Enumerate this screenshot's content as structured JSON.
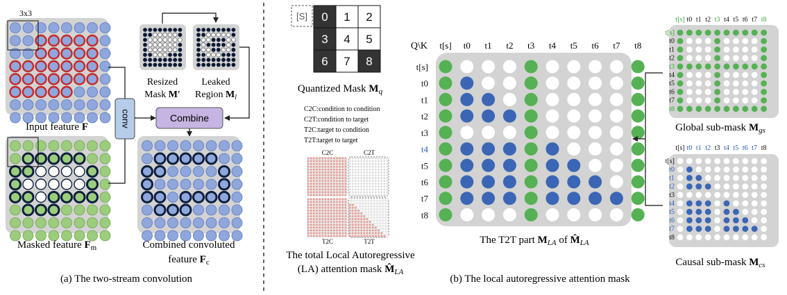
{
  "colors": {
    "panel": "#d3d3d3",
    "blue_dot": "#8fa7dc",
    "blue_dot_stroke": "#5a79bb",
    "red_ring": "#c62828",
    "green_dot": "#9ccd7c",
    "dark_ring": "#0d1f3c",
    "mask_dot": "#0d1a33",
    "conv_box": "#b5cde9",
    "combine_box": "#c6b4e2",
    "mla_green": "#55b153",
    "mla_blue": "#3b66b5",
    "mla_white": "#ffffff",
    "mla_panel": "#d3d3d3",
    "label_blue": "#2f5cb0",
    "label_green": "#3fa543",
    "t2c_pink": "#e89a92"
  },
  "left": {
    "kernel_label": "3x3",
    "input_caption_text": "Input feature ",
    "input_caption_sym": "F",
    "masked_caption_text": "Masked feature ",
    "masked_caption_sym": "F",
    "masked_caption_sub": "m",
    "conv_label": "conv",
    "combine_label": "Combine",
    "resized_line1": "Resized",
    "resized_line2": "Mask ",
    "resized_sym": "M′",
    "leaked_line1": "Leaked",
    "leaked_line2": "Region ",
    "leaked_sym": "M",
    "leaked_sub": "l",
    "combined_line1": "Combined convoluted",
    "combined_line2": "feature ",
    "combined_sym": "F",
    "combined_sub": "c",
    "caption": "(a) The two-stream convolution"
  },
  "mid": {
    "start_token": "[S]",
    "grid_cells": [
      "0",
      "1",
      "2",
      "3",
      "4",
      "5",
      "6",
      "7",
      "8"
    ],
    "quant_caption": "Quantized Mask ",
    "quant_sym": "M",
    "quant_sub": "q",
    "legend": [
      "C2C:condition to condition",
      "C2T:condition to target",
      "T2C:target to condition",
      "T2T:target to target"
    ],
    "quad_c2c": "C2C",
    "quad_c2t": "C2T",
    "quad_t2c": "T2C",
    "quad_t2t": "T2T",
    "total_line1": "The total Local Autoregressive",
    "total_line2": "(LA) attention mask ",
    "total_sym": "M̂",
    "total_sub": "LA"
  },
  "right": {
    "corner_label": "Q\\K",
    "tokens": [
      "t[s]",
      "t0",
      "t1",
      "t2",
      "t3",
      "t4",
      "t5",
      "t6",
      "t7",
      "t8"
    ],
    "matrix_rows": [
      "GWWWGWWWWG",
      "GBWWGWWWWG",
      "GBBWGWWWWG",
      "GBBBGWWWWG",
      "GWWWGWWWWG",
      "GBBBGBWWWG",
      "GBBBGBBWWG",
      "GBBBGBBBWG",
      "GBBBGBBBBG",
      "GWWWGWWWWG"
    ],
    "main_caption_prefix": "The T2T part ",
    "main_sym": "M",
    "main_sub": "LA",
    "main_of": " of ",
    "main_sym2": "M̂",
    "main_sub2": "LA",
    "global_caption": "Global sub-mask ",
    "global_sym": "M",
    "global_sub": "gs",
    "causal_caption": "Causal sub-mask ",
    "causal_sym": "M",
    "causal_sub": "cs",
    "caption": "(b) The local autoregressive attention mask"
  }
}
